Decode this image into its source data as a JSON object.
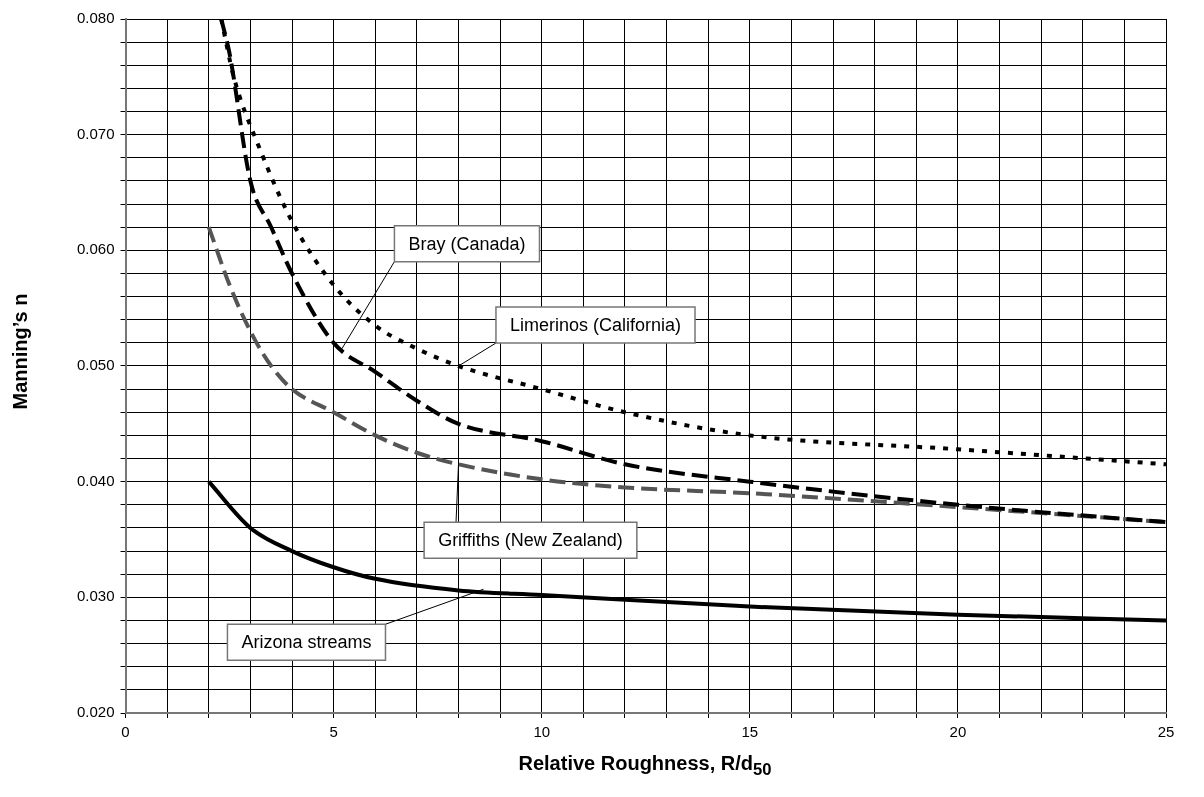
{
  "chart_data": {
    "type": "line",
    "xlabel": "Relative Roughness, R/d$_{50}$",
    "ylabel": "Manning’s n",
    "xlim": [
      0,
      25
    ],
    "ylim": [
      0.02,
      0.08
    ],
    "xticks": [
      0,
      {
        "value": 1,
        "label": null
      },
      {
        "value": 2,
        "label": null
      },
      {
        "value": 3,
        "label": null
      },
      {
        "value": 4,
        "label": null
      },
      5,
      {
        "value": 6,
        "label": null
      },
      {
        "value": 7,
        "label": null
      },
      {
        "value": 8,
        "label": null
      },
      {
        "value": 9,
        "label": null
      },
      10,
      {
        "value": 11,
        "label": null
      },
      {
        "value": 12,
        "label": null
      },
      {
        "value": 13,
        "label": null
      },
      {
        "value": 14,
        "label": null
      },
      15,
      {
        "value": 16,
        "label": null
      },
      {
        "value": 17,
        "label": null
      },
      {
        "value": 18,
        "label": null
      },
      {
        "value": 19,
        "label": null
      },
      20,
      {
        "value": 21,
        "label": null
      },
      {
        "value": 22,
        "label": null
      },
      {
        "value": 23,
        "label": null
      },
      {
        "value": 24,
        "label": null
      },
      25
    ],
    "yticks": [
      {
        "value": 0.02,
        "label": "0.020"
      },
      {
        "value": 0.022,
        "label": null
      },
      {
        "value": 0.024,
        "label": null
      },
      {
        "value": 0.026,
        "label": null
      },
      {
        "value": 0.028,
        "label": null
      },
      {
        "value": 0.03,
        "label": "0.030"
      },
      {
        "value": 0.032,
        "label": null
      },
      {
        "value": 0.034,
        "label": null
      },
      {
        "value": 0.036,
        "label": null
      },
      {
        "value": 0.038,
        "label": null
      },
      {
        "value": 0.04,
        "label": "0.040"
      },
      {
        "value": 0.042,
        "label": null
      },
      {
        "value": 0.044,
        "label": null
      },
      {
        "value": 0.046,
        "label": null
      },
      {
        "value": 0.048,
        "label": null
      },
      {
        "value": 0.05,
        "label": "0.050"
      },
      {
        "value": 0.052,
        "label": null
      },
      {
        "value": 0.054,
        "label": null
      },
      {
        "value": 0.056,
        "label": null
      },
      {
        "value": 0.058,
        "label": null
      },
      {
        "value": 0.06,
        "label": "0.060"
      },
      {
        "value": 0.062,
        "label": null
      },
      {
        "value": 0.064,
        "label": null
      },
      {
        "value": 0.066,
        "label": null
      },
      {
        "value": 0.068,
        "label": null
      },
      {
        "value": 0.07,
        "label": "0.070"
      },
      {
        "value": 0.072,
        "label": null
      },
      {
        "value": 0.074,
        "label": null
      },
      {
        "value": 0.076,
        "label": null
      },
      {
        "value": 0.078,
        "label": null
      },
      {
        "value": 0.08,
        "label": "0.080"
      }
    ],
    "grid": true,
    "legend": false,
    "marker": "none",
    "series": [
      {
        "color": "#000000",
        "line_style": "dotted",
        "x": [
          2.3,
          2.6,
          3.2,
          4,
          5,
          6,
          7,
          8,
          10,
          12,
          15,
          20,
          25
        ],
        "values": [
          0.08,
          0.075,
          0.069,
          0.0625,
          0.057,
          0.0535,
          0.0515,
          0.05,
          0.048,
          0.046,
          0.044,
          0.0428,
          0.0415
        ]
      },
      {
        "color": "#000000",
        "line_style": "dashed",
        "x": [
          2.3,
          2.5,
          3,
          3.5,
          4,
          5,
          6,
          7,
          8,
          10,
          12,
          15,
          20,
          25
        ],
        "values": [
          0.08,
          0.077,
          0.066,
          0.062,
          0.058,
          0.052,
          0.0495,
          0.047,
          0.045,
          0.0435,
          0.0415,
          0.04,
          0.038,
          0.0365
        ]
      },
      {
        "color": "#555555",
        "line_style": "dashed",
        "x": [
          2,
          2.5,
          3,
          3.5,
          4,
          5,
          6,
          7,
          8,
          10,
          12,
          15,
          20,
          25
        ],
        "values": [
          0.062,
          0.057,
          0.053,
          0.05,
          0.048,
          0.046,
          0.044,
          0.0425,
          0.0415,
          0.0402,
          0.0395,
          0.039,
          0.0378,
          0.0365
        ]
      },
      {
        "color": "#000000",
        "line_style": "solid",
        "x": [
          2,
          3,
          4,
          5,
          6,
          8,
          10,
          15,
          20,
          25
        ],
        "values": [
          0.04,
          0.036,
          0.034,
          0.0326,
          0.0316,
          0.0306,
          0.0302,
          0.0292,
          0.0285,
          0.028
        ]
      }
    ],
    "annotations": [
      {
        "text": "Bray (Canada)",
        "x": 5.2,
        "y": 0.0515
      },
      {
        "text": "Limerinos (California)",
        "x": 8,
        "y": 0.05
      },
      {
        "text": "Griffiths (New Zealand)",
        "x": 8,
        "y": 0.0415
      },
      {
        "text": "Arizona streams",
        "x": 8.6,
        "y": 0.0307
      }
    ]
  }
}
